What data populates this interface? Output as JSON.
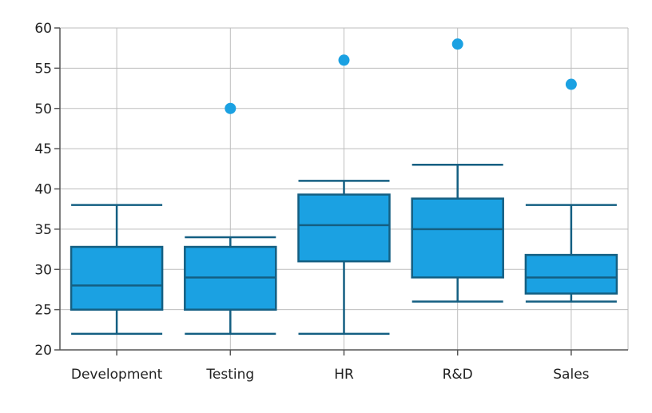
{
  "chart_data": {
    "type": "box",
    "title": "",
    "xlabel": "",
    "ylabel": "",
    "ylim": [
      20,
      60
    ],
    "yticks": [
      20,
      25,
      30,
      35,
      40,
      45,
      50,
      55,
      60
    ],
    "grid": true,
    "legend": "none",
    "colors": {
      "box_fill": "#1ba1e2",
      "box_stroke": "#145f82",
      "outlier": "#1ba1e2",
      "grid": "#bdbdbd",
      "axis": "#555555"
    },
    "categories": [
      "Development",
      "Testing",
      "HR",
      "R&D",
      "Sales"
    ],
    "boxes": [
      {
        "category": "Development",
        "min": 22,
        "q1": 25,
        "median": 28,
        "q3": 32.8,
        "max": 38,
        "outliers": []
      },
      {
        "category": "Testing",
        "min": 22,
        "q1": 25,
        "median": 29,
        "q3": 32.8,
        "max": 34,
        "outliers": [
          50
        ]
      },
      {
        "category": "HR",
        "min": 22,
        "q1": 31,
        "median": 35.5,
        "q3": 39.3,
        "max": 41,
        "outliers": [
          56
        ]
      },
      {
        "category": "R&D",
        "min": 26,
        "q1": 29,
        "median": 35,
        "q3": 38.8,
        "max": 43,
        "outliers": [
          58
        ]
      },
      {
        "category": "Sales",
        "min": 26,
        "q1": 27,
        "median": 29,
        "q3": 31.8,
        "max": 38,
        "outliers": [
          53
        ]
      }
    ]
  }
}
